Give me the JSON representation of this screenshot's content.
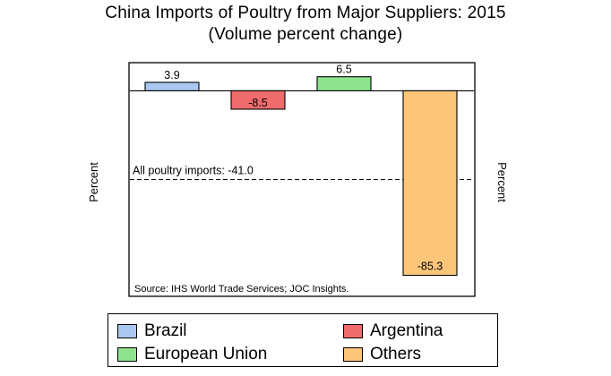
{
  "title_line1": "China Imports of Poultry from Major Suppliers: 2015",
  "title_line2": "(Volume percent change)",
  "chart_data": {
    "type": "bar",
    "title": "China Imports of Poultry from Major Suppliers: 2015",
    "subtitle": "(Volume percent change)",
    "categories": [
      "Brazil",
      "Argentina",
      "European Union",
      "Others"
    ],
    "values": [
      3.9,
      -8.5,
      6.5,
      -85.3
    ],
    "colors": [
      "#a9c7f0",
      "#f06b6b",
      "#8fe38f",
      "#fbc57a"
    ],
    "ylabel": "Percent",
    "ylim": [
      -95,
      13
    ],
    "grid": false,
    "reference_line": {
      "value": -41.0,
      "label": "All poultry imports: -41.0",
      "style": "dashed"
    },
    "data_labels": [
      "3.9",
      "-8.5",
      "6.5",
      "-85.3"
    ],
    "source": "Source: IHS World Trade Services; JOC Insights.",
    "legend": [
      "Brazil",
      "Argentina",
      "European Union",
      "Others"
    ],
    "legend_position": "bottom"
  }
}
